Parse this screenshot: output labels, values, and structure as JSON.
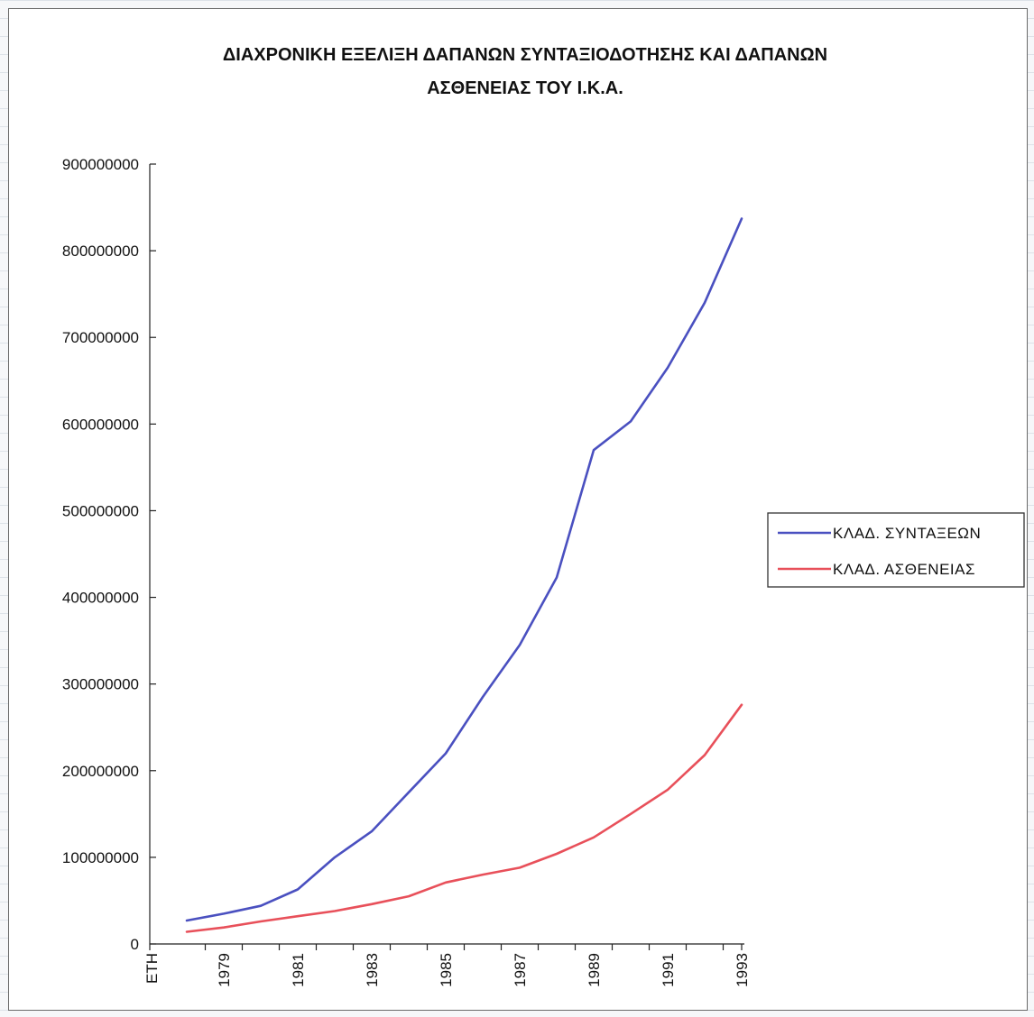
{
  "chart_data": {
    "type": "line",
    "title_lines": [
      "ΔΙΑΧΡΟΝΙΚΗ ΕΞΕΛΙΞΗ ΔΑΠΑΝΩΝ ΣΥΝΤΑΞΙΟΔΟΤΗΣΗΣ ΚΑΙ ΔΑΠΑΝΩΝ",
      "ΑΣΘΕΝΕΙΑΣ ΤΟΥ Ι.Κ.Α."
    ],
    "x_tick_labels": [
      "ΕΤΗ",
      "1979",
      "1981",
      "1983",
      "1985",
      "1987",
      "1989",
      "1991",
      "1993"
    ],
    "x": [
      1978,
      1979,
      1980,
      1981,
      1982,
      1983,
      1984,
      1985,
      1986,
      1987,
      1988,
      1989,
      1990,
      1991,
      1992,
      1993
    ],
    "y_ticks": [
      0,
      100000000,
      200000000,
      300000000,
      400000000,
      500000000,
      600000000,
      700000000,
      800000000,
      900000000
    ],
    "ylim": [
      0,
      900000000
    ],
    "series": [
      {
        "name": "ΚΛΑΔ. ΣΥΝΤΑΞΕΩΝ",
        "color": "#4a50c0",
        "values": [
          27000000,
          35000000,
          44000000,
          63000000,
          100000000,
          130000000,
          175000000,
          220000000,
          285000000,
          345000000,
          423000000,
          570000000,
          603000000,
          665000000,
          740000000,
          837000000
        ]
      },
      {
        "name": "ΚΛΑΔ. ΑΣΘΕΝΕΙΑΣ",
        "color": "#e8505a",
        "values": [
          14000000,
          19000000,
          26000000,
          32000000,
          38000000,
          46000000,
          55000000,
          71000000,
          80000000,
          88000000,
          104000000,
          123000000,
          150000000,
          178000000,
          218000000,
          276000000
        ]
      }
    ],
    "legend_position": "right",
    "grid": false
  }
}
